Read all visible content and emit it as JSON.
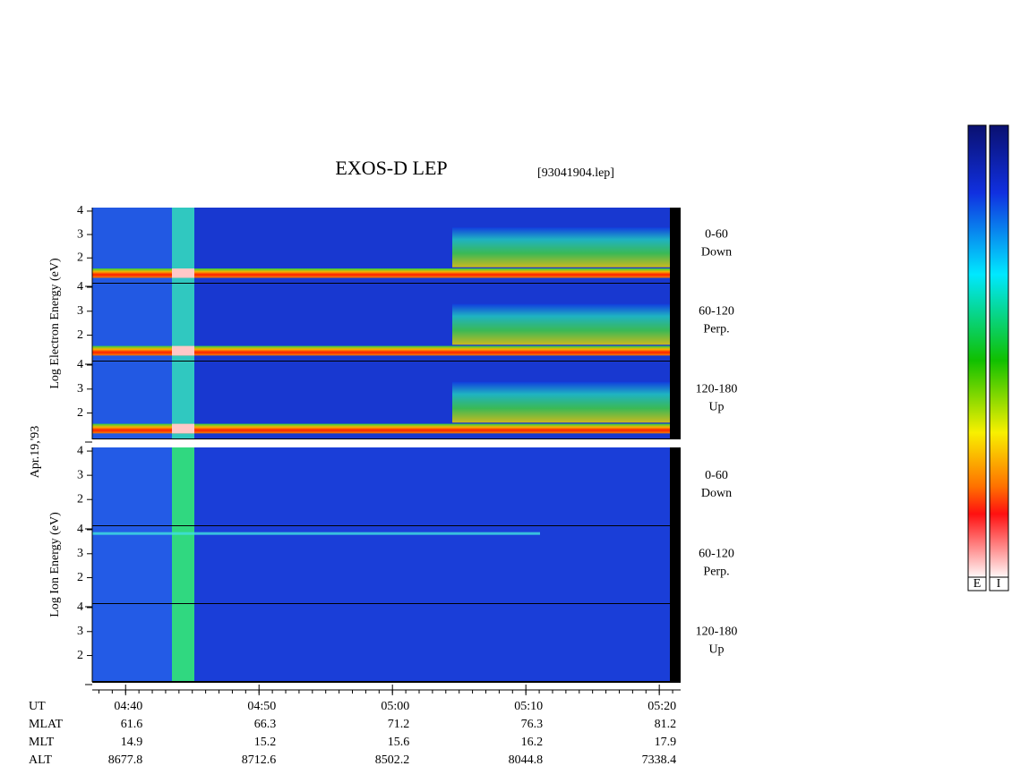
{
  "chart_data": {
    "type": "spectrogram",
    "title": "EXOS-D LEP",
    "file_label": "[93041904.lep]",
    "date_label": "Apr.19,'93",
    "ylim": [
      0.9,
      4.15
    ],
    "yticks": [
      2,
      3,
      4
    ],
    "xlim": [
      "04:37:30",
      "05:21:36"
    ],
    "groups": [
      {
        "ylabel": "Log Electron Energy (eV)",
        "species": "electron",
        "panels": [
          {
            "angle": "0-60",
            "direction": "Down"
          },
          {
            "angle": "60-120",
            "direction": "Perp."
          },
          {
            "angle": "120-180",
            "direction": "Up"
          }
        ]
      },
      {
        "ylabel": "Log Ion Energy (eV)",
        "species": "ion",
        "panels": [
          {
            "angle": "0-60",
            "direction": "Down"
          },
          {
            "angle": "60-120",
            "direction": "Perp."
          },
          {
            "angle": "120-180",
            "direction": "Up"
          }
        ]
      }
    ],
    "ephemeris": {
      "row_labels": [
        "UT",
        "MLAT",
        "MLT",
        "ALT"
      ],
      "UT": [
        "04:40",
        "04:50",
        "05:00",
        "05:10",
        "05:20"
      ],
      "MLAT": [
        61.6,
        66.3,
        71.2,
        76.3,
        81.2
      ],
      "MLT": [
        14.9,
        15.2,
        15.6,
        16.2,
        17.9
      ],
      "ALT": [
        8677.8,
        8712.6,
        8502.2,
        8044.8,
        7338.4
      ]
    },
    "colorbar_labels": [
      "E",
      "I"
    ]
  }
}
